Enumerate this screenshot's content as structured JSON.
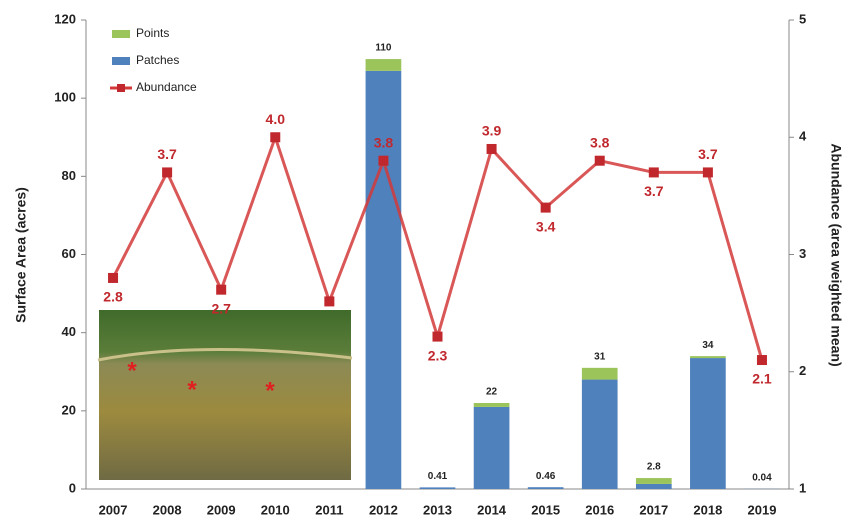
{
  "chart_data": {
    "type": "bar-line",
    "categories": [
      "2007",
      "2008",
      "2009",
      "2010",
      "2011",
      "2012",
      "2013",
      "2014",
      "2015",
      "2016",
      "2017",
      "2018",
      "2019"
    ],
    "series": [
      {
        "name": "Points",
        "color": "#9bc45a",
        "type": "bar",
        "values": [
          null,
          null,
          null,
          null,
          null,
          3,
          0,
          1,
          0,
          3,
          1.5,
          0.5,
          0
        ]
      },
      {
        "name": "Patches",
        "color": "#4f81bd",
        "type": "bar",
        "values": [
          null,
          null,
          null,
          null,
          null,
          107,
          0.41,
          21,
          0.46,
          28,
          1.3,
          33.5,
          0.04
        ]
      },
      {
        "name": "Abundance",
        "color": "#d23a3a",
        "type": "line",
        "axis": "y2",
        "values": [
          2.8,
          3.7,
          2.7,
          4.0,
          2.6,
          3.8,
          2.3,
          3.9,
          3.4,
          3.8,
          3.7,
          3.7,
          2.1
        ],
        "value_labels": [
          "2.8",
          "3.7",
          "2.7",
          "4.0",
          null,
          "3.8",
          "2.3",
          "3.9",
          "3.4",
          "3.8",
          "3.7",
          "3.7",
          "2.1"
        ]
      }
    ],
    "totals": [
      null,
      null,
      null,
      null,
      null,
      110,
      0.41,
      22,
      0.46,
      31,
      2.8,
      34,
      0.04
    ],
    "ylabel": "Surface Area (acres)",
    "y2label": "Abundance (area weighted mean)",
    "ylim": [
      0,
      120
    ],
    "yticks": [
      0,
      20,
      40,
      60,
      80,
      100,
      120
    ],
    "y2lim": [
      1,
      5
    ],
    "y2ticks": [
      1,
      2,
      3,
      4,
      5
    ],
    "legend": "top-left"
  }
}
